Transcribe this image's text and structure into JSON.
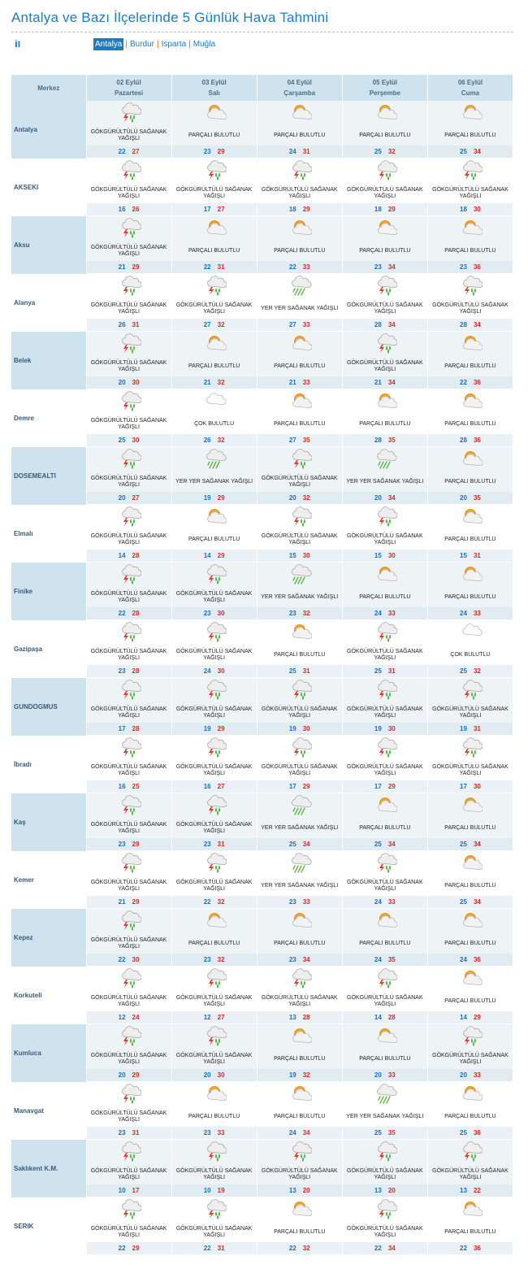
{
  "title": "Antalya ve Bazı İlçelerinde 5 Günlük Hava Tahmini",
  "il_label": "İl",
  "provinces": [
    {
      "label": "Antalya",
      "active": true
    },
    {
      "label": "Burdur",
      "active": false
    },
    {
      "label": "Isparta",
      "active": false
    },
    {
      "label": "Muğla",
      "active": false
    }
  ],
  "header": {
    "merkez": "Merkez",
    "days": [
      {
        "date": "02 Eylül",
        "weekday": "Pazartesi"
      },
      {
        "date": "03 Eylül",
        "weekday": "Salı"
      },
      {
        "date": "04 Eylül",
        "weekday": "Çarşamba"
      },
      {
        "date": "05 Eylül",
        "weekday": "Perşembe"
      },
      {
        "date": "06 Eylül",
        "weekday": "Cuma"
      }
    ]
  },
  "conditions": {
    "GS": {
      "text": "GÖKGÜRÜLTÜLÜ SAĞANAK YAĞIŞLI",
      "icon": "thunderstorm-rain-icon"
    },
    "PB": {
      "text": "PARÇALI BULUTLU",
      "icon": "partly-cloudy-icon"
    },
    "YS": {
      "text": "YER YER SAĞANAK YAĞIŞLI",
      "icon": "showers-icon"
    },
    "CB": {
      "text": "ÇOK BULUTLU",
      "icon": "cloudy-icon"
    }
  },
  "locations": [
    {
      "name": "Antalya",
      "days": [
        [
          "GS",
          22,
          27
        ],
        [
          "PB",
          23,
          29
        ],
        [
          "PB",
          24,
          31
        ],
        [
          "PB",
          25,
          32
        ],
        [
          "PB",
          25,
          34
        ]
      ]
    },
    {
      "name": "AKSEKI",
      "days": [
        [
          "GS",
          16,
          26
        ],
        [
          "GS",
          17,
          27
        ],
        [
          "GS",
          18,
          29
        ],
        [
          "GS",
          18,
          29
        ],
        [
          "GS",
          18,
          30
        ]
      ]
    },
    {
      "name": "Aksu",
      "days": [
        [
          "GS",
          21,
          29
        ],
        [
          "PB",
          22,
          31
        ],
        [
          "PB",
          22,
          33
        ],
        [
          "PB",
          23,
          34
        ],
        [
          "PB",
          23,
          36
        ]
      ]
    },
    {
      "name": "Alanya",
      "days": [
        [
          "GS",
          26,
          31
        ],
        [
          "GS",
          27,
          32
        ],
        [
          "YS",
          27,
          33
        ],
        [
          "GS",
          28,
          34
        ],
        [
          "GS",
          28,
          34
        ]
      ]
    },
    {
      "name": "Belek",
      "days": [
        [
          "GS",
          20,
          30
        ],
        [
          "PB",
          21,
          32
        ],
        [
          "PB",
          21,
          33
        ],
        [
          "GS",
          21,
          34
        ],
        [
          "PB",
          22,
          36
        ]
      ]
    },
    {
      "name": "Demre",
      "days": [
        [
          "GS",
          25,
          30
        ],
        [
          "CB",
          26,
          32
        ],
        [
          "PB",
          27,
          35
        ],
        [
          "PB",
          28,
          35
        ],
        [
          "PB",
          28,
          36
        ]
      ]
    },
    {
      "name": "DOSEMEALTI",
      "days": [
        [
          "GS",
          20,
          27
        ],
        [
          "YS",
          19,
          29
        ],
        [
          "GS",
          20,
          32
        ],
        [
          "YS",
          20,
          34
        ],
        [
          "PB",
          20,
          35
        ]
      ]
    },
    {
      "name": "Elmalı",
      "days": [
        [
          "GS",
          14,
          28
        ],
        [
          "PB",
          14,
          29
        ],
        [
          "GS",
          15,
          30
        ],
        [
          "GS",
          15,
          30
        ],
        [
          "PB",
          15,
          31
        ]
      ]
    },
    {
      "name": "Finike",
      "days": [
        [
          "GS",
          22,
          28
        ],
        [
          "GS",
          23,
          30
        ],
        [
          "YS",
          23,
          32
        ],
        [
          "PB",
          24,
          33
        ],
        [
          "PB",
          24,
          33
        ]
      ]
    },
    {
      "name": "Gazipaşa",
      "days": [
        [
          "GS",
          23,
          28
        ],
        [
          "GS",
          24,
          30
        ],
        [
          "PB",
          25,
          31
        ],
        [
          "GS",
          25,
          31
        ],
        [
          "CB",
          25,
          32
        ]
      ]
    },
    {
      "name": "GUNDOGMUS",
      "days": [
        [
          "GS",
          17,
          28
        ],
        [
          "GS",
          19,
          29
        ],
        [
          "GS",
          19,
          30
        ],
        [
          "GS",
          19,
          30
        ],
        [
          "GS",
          19,
          31
        ]
      ]
    },
    {
      "name": "İbradı",
      "days": [
        [
          "GS",
          16,
          25
        ],
        [
          "GS",
          16,
          27
        ],
        [
          "GS",
          17,
          29
        ],
        [
          "GS",
          17,
          29
        ],
        [
          "GS",
          17,
          30
        ]
      ]
    },
    {
      "name": "Kaş",
      "days": [
        [
          "GS",
          23,
          29
        ],
        [
          "GS",
          23,
          31
        ],
        [
          "YS",
          25,
          34
        ],
        [
          "PB",
          25,
          34
        ],
        [
          "PB",
          25,
          34
        ]
      ]
    },
    {
      "name": "Kemer",
      "days": [
        [
          "GS",
          21,
          29
        ],
        [
          "GS",
          22,
          32
        ],
        [
          "YS",
          23,
          33
        ],
        [
          "GS",
          24,
          33
        ],
        [
          "PB",
          25,
          34
        ]
      ]
    },
    {
      "name": "Kepez",
      "days": [
        [
          "GS",
          22,
          30
        ],
        [
          "PB",
          23,
          32
        ],
        [
          "PB",
          23,
          34
        ],
        [
          "PB",
          24,
          35
        ],
        [
          "PB",
          24,
          36
        ]
      ]
    },
    {
      "name": "Korkuteli",
      "days": [
        [
          "GS",
          12,
          24
        ],
        [
          "GS",
          12,
          27
        ],
        [
          "GS",
          13,
          28
        ],
        [
          "GS",
          14,
          28
        ],
        [
          "PB",
          14,
          29
        ]
      ]
    },
    {
      "name": "Kumluca",
      "days": [
        [
          "GS",
          20,
          29
        ],
        [
          "GS",
          20,
          30
        ],
        [
          "PB",
          19,
          32
        ],
        [
          "PB",
          20,
          33
        ],
        [
          "GS",
          20,
          33
        ]
      ]
    },
    {
      "name": "Manavgat",
      "days": [
        [
          "GS",
          23,
          31
        ],
        [
          "PB",
          23,
          33
        ],
        [
          "PB",
          24,
          34
        ],
        [
          "YS",
          25,
          35
        ],
        [
          "PB",
          25,
          36
        ]
      ]
    },
    {
      "name": "Saklıkent K.M.",
      "days": [
        [
          "GS",
          10,
          17
        ],
        [
          "GS",
          10,
          19
        ],
        [
          "GS",
          13,
          20
        ],
        [
          "GS",
          13,
          20
        ],
        [
          "GS",
          13,
          22
        ]
      ]
    },
    {
      "name": "SERIK",
      "days": [
        [
          "GS",
          22,
          29
        ],
        [
          "GS",
          22,
          31
        ],
        [
          "PB",
          22,
          32
        ],
        [
          "GS",
          22,
          34
        ],
        [
          "PB",
          22,
          36
        ]
      ]
    }
  ]
}
